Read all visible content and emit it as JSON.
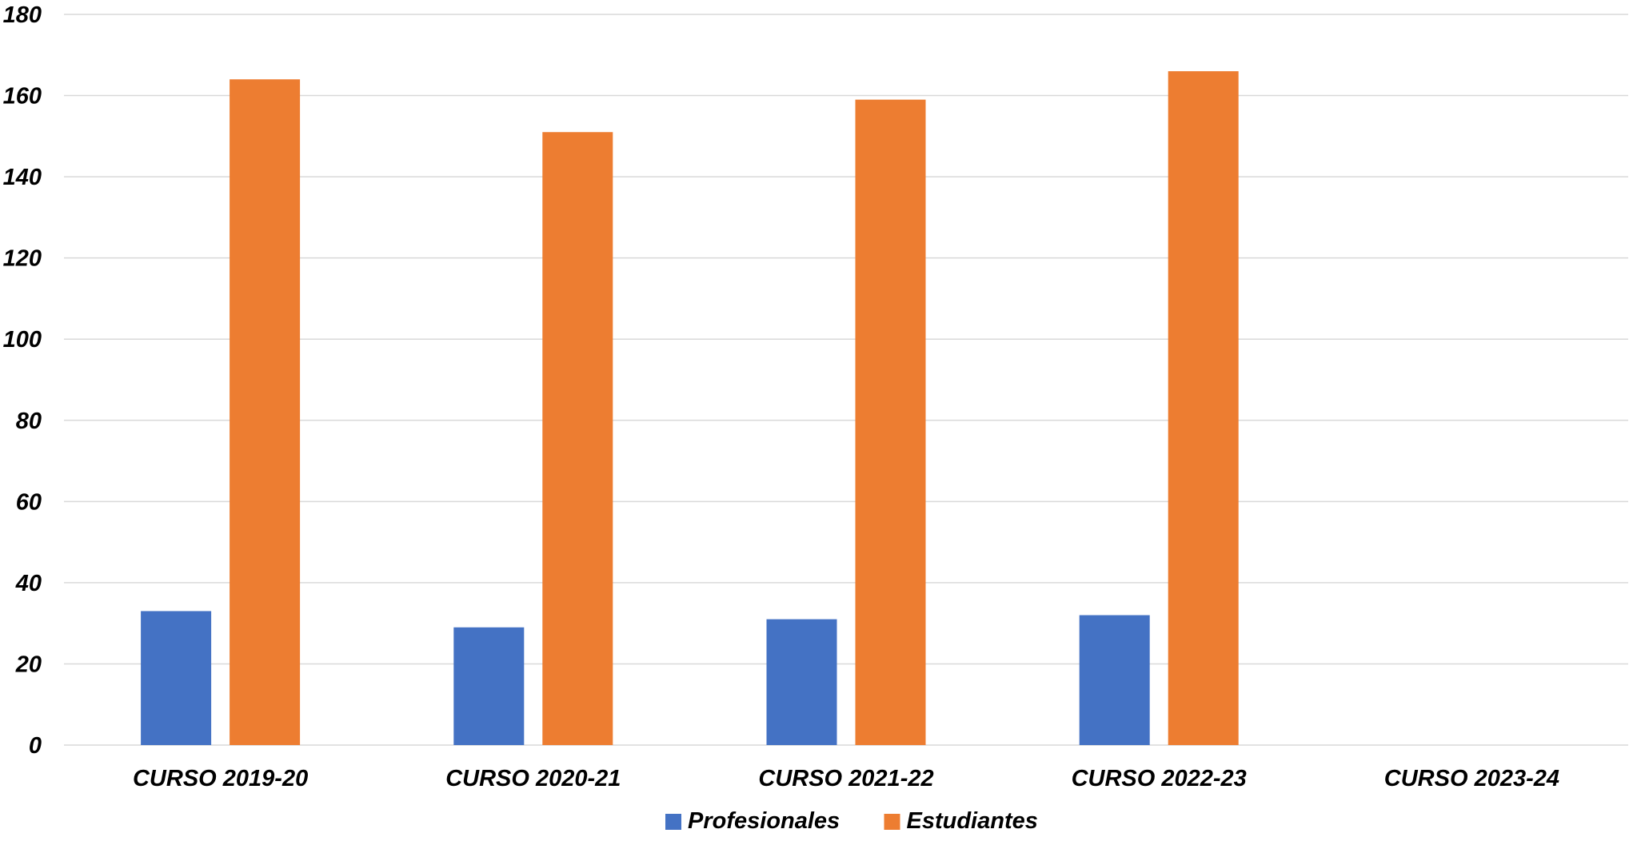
{
  "chart_data": {
    "type": "bar",
    "categories": [
      "CURSO 2019-20",
      "CURSO 2020-21",
      "CURSO 2021-22",
      "CURSO 2022-23",
      "CURSO 2023-24"
    ],
    "series": [
      {
        "name": "Profesionales",
        "values": [
          33,
          29,
          31,
          32,
          null
        ],
        "color": "#4472c4"
      },
      {
        "name": "Estudiantes",
        "values": [
          164,
          151,
          159,
          166,
          null
        ],
        "color": "#ed7d31"
      }
    ],
    "title": "",
    "xlabel": "",
    "ylabel": "",
    "ylim": [
      0,
      180
    ],
    "yticks": [
      0,
      20,
      40,
      60,
      80,
      100,
      120,
      140,
      160,
      180
    ],
    "grid": true,
    "legend_position": "bottom"
  }
}
